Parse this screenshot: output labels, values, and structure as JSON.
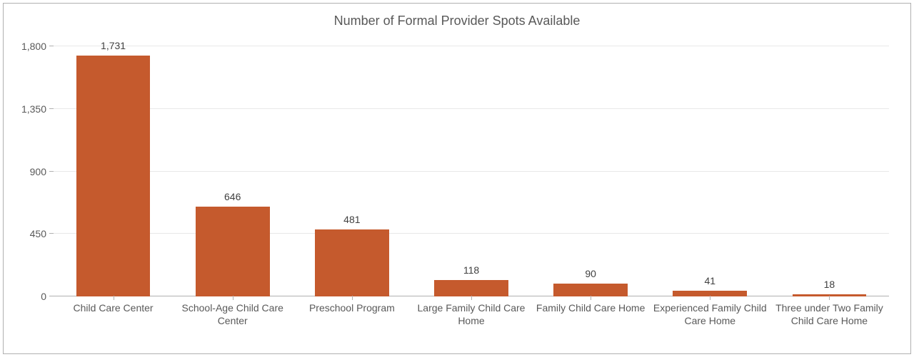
{
  "chart": {
    "type": "bar",
    "title": "Number of Formal Provider Spots Available",
    "title_fontsize": 18,
    "title_color": "#595959",
    "categories": [
      "Child Care Center",
      "School-Age Child Care Center",
      "Preschool Program",
      "Large Family Child Care Home",
      "Family Child Care Home",
      "Experienced Family Child Care Home",
      "Three under Two Family Child Care Home"
    ],
    "values": [
      1731,
      646,
      481,
      118,
      90,
      41,
      18
    ],
    "value_labels": [
      "1,731",
      "646",
      "481",
      "118",
      "90",
      "41",
      "18"
    ],
    "bar_color": "#c55a2d",
    "bar_width": 0.62,
    "background_color": "#ffffff",
    "grid_color": "#e8e8e8",
    "axis_color": "#b0b0b0",
    "label_color": "#595959",
    "label_fontsize": 14,
    "ylim": [
      0,
      1800
    ],
    "ytick_step": 450,
    "yticks": [
      0,
      450,
      900,
      1350,
      1800
    ],
    "ytick_labels": [
      "0",
      "450",
      "900",
      "1,350",
      "1,800"
    ],
    "border_color": "#b0b0b0"
  }
}
